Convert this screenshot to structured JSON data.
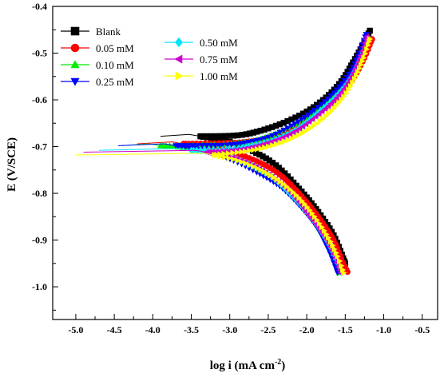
{
  "chart_data": {
    "type": "scatter",
    "title": "",
    "xlabel": "log i (mA cm",
    "xlabel_sup": "-2",
    "xlabel_close": ")",
    "ylabel": "E (V/SCE)",
    "xlim": [
      -5.3,
      -0.3
    ],
    "ylim": [
      -1.07,
      -0.4
    ],
    "x_tick_values": [
      -5.0,
      -4.5,
      -4.0,
      -3.5,
      -3.0,
      -2.5,
      -2.0,
      -1.5,
      -1.0,
      -0.5
    ],
    "x_tick_labels": [
      "-5.0",
      "-4.5",
      "-4.0",
      "-3.5",
      "-3.0",
      "-2.5",
      "-2.0",
      "-1.5",
      "-1.0",
      "-0.5"
    ],
    "y_tick_values": [
      -0.4,
      -0.5,
      -0.6,
      -0.7,
      -0.8,
      -0.9,
      -1.0
    ],
    "y_tick_labels": [
      "-0.4",
      "-0.5",
      "-0.6",
      "-0.7",
      "-0.8",
      "-0.9",
      "-1.0"
    ],
    "grid": false,
    "legend_placement": "top-left",
    "series": [
      {
        "name": "Blank",
        "color": "#000000",
        "marker": "square",
        "ecorr": -0.678,
        "tail_x": -3.9,
        "min_x": -3.38,
        "cathodic": [
          [
            -3.38,
            -0.678
          ],
          [
            -3.0,
            -0.69
          ],
          [
            -2.7,
            -0.71
          ],
          [
            -2.4,
            -0.74
          ],
          [
            -2.1,
            -0.79
          ],
          [
            -1.85,
            -0.84
          ],
          [
            -1.65,
            -0.89
          ],
          [
            -1.5,
            -0.95
          ]
        ],
        "anodic": [
          [
            -3.38,
            -0.678
          ],
          [
            -2.9,
            -0.676
          ],
          [
            -2.6,
            -0.666
          ],
          [
            -2.3,
            -0.649
          ],
          [
            -2.0,
            -0.625
          ],
          [
            -1.75,
            -0.595
          ],
          [
            -1.55,
            -0.56
          ],
          [
            -1.4,
            -0.52
          ],
          [
            -1.28,
            -0.485
          ],
          [
            -1.18,
            -0.452
          ]
        ]
      },
      {
        "name": "0.05 mM",
        "color": "#ff0000",
        "marker": "circle",
        "ecorr": -0.694,
        "tail_x": -4.2,
        "min_x": -3.6,
        "cathodic": [
          [
            -3.6,
            -0.694
          ],
          [
            -3.2,
            -0.7
          ],
          [
            -2.9,
            -0.715
          ],
          [
            -2.6,
            -0.735
          ],
          [
            -2.35,
            -0.76
          ],
          [
            -2.1,
            -0.8
          ],
          [
            -1.85,
            -0.85
          ],
          [
            -1.65,
            -0.9
          ],
          [
            -1.55,
            -0.94
          ],
          [
            -1.47,
            -0.968
          ]
        ],
        "anodic": [
          [
            -3.6,
            -0.694
          ],
          [
            -3.0,
            -0.692
          ],
          [
            -2.7,
            -0.688
          ],
          [
            -2.4,
            -0.678
          ],
          [
            -2.1,
            -0.656
          ],
          [
            -1.8,
            -0.622
          ],
          [
            -1.55,
            -0.585
          ],
          [
            -1.38,
            -0.55
          ],
          [
            -1.25,
            -0.51
          ],
          [
            -1.15,
            -0.47
          ]
        ]
      },
      {
        "name": "0.10 mM",
        "color": "#00ee00",
        "marker": "triangle-up",
        "ecorr": -0.698,
        "tail_x": -4.4,
        "min_x": -3.9,
        "cathodic": [
          [
            -3.9,
            -0.698
          ],
          [
            -3.4,
            -0.706
          ],
          [
            -3.0,
            -0.72
          ],
          [
            -2.7,
            -0.74
          ],
          [
            -2.4,
            -0.77
          ],
          [
            -2.15,
            -0.81
          ],
          [
            -1.9,
            -0.86
          ],
          [
            -1.72,
            -0.91
          ],
          [
            -1.58,
            -0.97
          ]
        ],
        "anodic": [
          [
            -3.9,
            -0.698
          ],
          [
            -3.2,
            -0.696
          ],
          [
            -2.8,
            -0.69
          ],
          [
            -2.5,
            -0.678
          ],
          [
            -2.2,
            -0.656
          ],
          [
            -1.9,
            -0.625
          ],
          [
            -1.65,
            -0.59
          ],
          [
            -1.45,
            -0.55
          ],
          [
            -1.3,
            -0.505
          ],
          [
            -1.2,
            -0.465
          ]
        ]
      },
      {
        "name": "0.25 mM",
        "color": "#0000ff",
        "marker": "triangle-down",
        "ecorr": -0.698,
        "tail_x": -4.45,
        "min_x": -3.7,
        "cathodic": [
          [
            -3.7,
            -0.698
          ],
          [
            -3.3,
            -0.71
          ],
          [
            -2.95,
            -0.73
          ],
          [
            -2.65,
            -0.755
          ],
          [
            -2.35,
            -0.785
          ],
          [
            -2.1,
            -0.825
          ],
          [
            -1.88,
            -0.87
          ],
          [
            -1.72,
            -0.92
          ],
          [
            -1.6,
            -0.97
          ]
        ],
        "anodic": [
          [
            -3.7,
            -0.698
          ],
          [
            -3.1,
            -0.697
          ],
          [
            -2.8,
            -0.692
          ],
          [
            -2.5,
            -0.68
          ],
          [
            -2.2,
            -0.656
          ],
          [
            -1.9,
            -0.622
          ],
          [
            -1.65,
            -0.585
          ],
          [
            -1.45,
            -0.545
          ],
          [
            -1.32,
            -0.5
          ],
          [
            -1.23,
            -0.46
          ]
        ]
      },
      {
        "name": "0.50 mM",
        "color": "#00e5ff",
        "marker": "diamond",
        "ecorr": -0.708,
        "tail_x": -4.7,
        "min_x": -3.5,
        "cathodic": [
          [
            -3.5,
            -0.708
          ],
          [
            -3.1,
            -0.715
          ],
          [
            -2.8,
            -0.735
          ],
          [
            -2.5,
            -0.76
          ],
          [
            -2.25,
            -0.795
          ],
          [
            -2.0,
            -0.84
          ],
          [
            -1.8,
            -0.885
          ],
          [
            -1.65,
            -0.93
          ],
          [
            -1.55,
            -0.97
          ]
        ],
        "anodic": [
          [
            -3.5,
            -0.708
          ],
          [
            -3.0,
            -0.705
          ],
          [
            -2.7,
            -0.697
          ],
          [
            -2.4,
            -0.684
          ],
          [
            -2.1,
            -0.66
          ],
          [
            -1.85,
            -0.628
          ],
          [
            -1.6,
            -0.59
          ],
          [
            -1.42,
            -0.55
          ],
          [
            -1.3,
            -0.51
          ],
          [
            -1.2,
            -0.47
          ]
        ]
      },
      {
        "name": "0.75 mM",
        "color": "#cc00cc",
        "marker": "triangle-left",
        "ecorr": -0.712,
        "tail_x": -4.9,
        "min_x": -3.3,
        "cathodic": [
          [
            -3.3,
            -0.712
          ],
          [
            -3.0,
            -0.72
          ],
          [
            -2.7,
            -0.74
          ],
          [
            -2.45,
            -0.765
          ],
          [
            -2.2,
            -0.8
          ],
          [
            -1.98,
            -0.845
          ],
          [
            -1.78,
            -0.89
          ],
          [
            -1.65,
            -0.93
          ],
          [
            -1.56,
            -0.97
          ]
        ],
        "anodic": [
          [
            -3.3,
            -0.712
          ],
          [
            -2.9,
            -0.707
          ],
          [
            -2.6,
            -0.697
          ],
          [
            -2.3,
            -0.68
          ],
          [
            -2.05,
            -0.657
          ],
          [
            -1.8,
            -0.625
          ],
          [
            -1.58,
            -0.59
          ],
          [
            -1.42,
            -0.55
          ],
          [
            -1.3,
            -0.505
          ],
          [
            -1.22,
            -0.465
          ]
        ]
      },
      {
        "name": "1.00 mM",
        "color": "#ffff00",
        "marker": "triangle-right",
        "ecorr": -0.718,
        "tail_x": -5.0,
        "min_x": -3.2,
        "cathodic": [
          [
            -3.2,
            -0.718
          ],
          [
            -2.9,
            -0.73
          ],
          [
            -2.6,
            -0.75
          ],
          [
            -2.35,
            -0.775
          ],
          [
            -2.1,
            -0.81
          ],
          [
            -1.9,
            -0.85
          ],
          [
            -1.72,
            -0.895
          ],
          [
            -1.6,
            -0.935
          ],
          [
            -1.52,
            -0.97
          ]
        ],
        "anodic": [
          [
            -3.2,
            -0.718
          ],
          [
            -2.8,
            -0.71
          ],
          [
            -2.5,
            -0.7
          ],
          [
            -2.2,
            -0.683
          ],
          [
            -1.95,
            -0.66
          ],
          [
            -1.72,
            -0.63
          ],
          [
            -1.52,
            -0.593
          ],
          [
            -1.38,
            -0.555
          ],
          [
            -1.26,
            -0.51
          ],
          [
            -1.18,
            -0.47
          ]
        ]
      }
    ]
  }
}
